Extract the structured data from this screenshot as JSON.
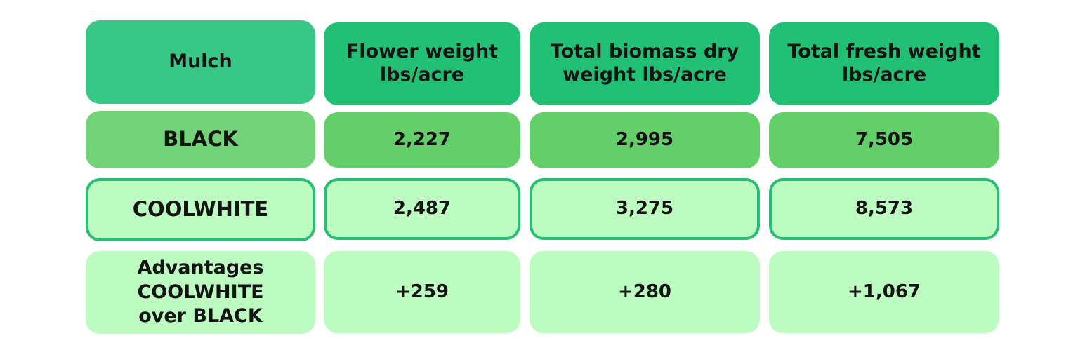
{
  "chart_data": {
    "type": "table",
    "columns": [
      "Mulch",
      "Flower weight lbs/acre",
      "Total biomass dry weight lbs/acre",
      "Total fresh weight lbs/acre"
    ],
    "rows": [
      {
        "label": "BLACK",
        "values": [
          "2,227",
          "2,995",
          "7,505"
        ],
        "color": "#63cf69"
      },
      {
        "label": "COOLWHITE",
        "values": [
          "2,487",
          "3,275",
          "8,573"
        ],
        "color": "#bdfcc0",
        "outline": "#27bf73"
      },
      {
        "label": "Advantages COOLWHITE over BLACK",
        "values": [
          "+259",
          "+280",
          "+1,067"
        ],
        "color": "#bdfcc0"
      }
    ],
    "header_colors": [
      "#37c887",
      "#21c074"
    ]
  }
}
